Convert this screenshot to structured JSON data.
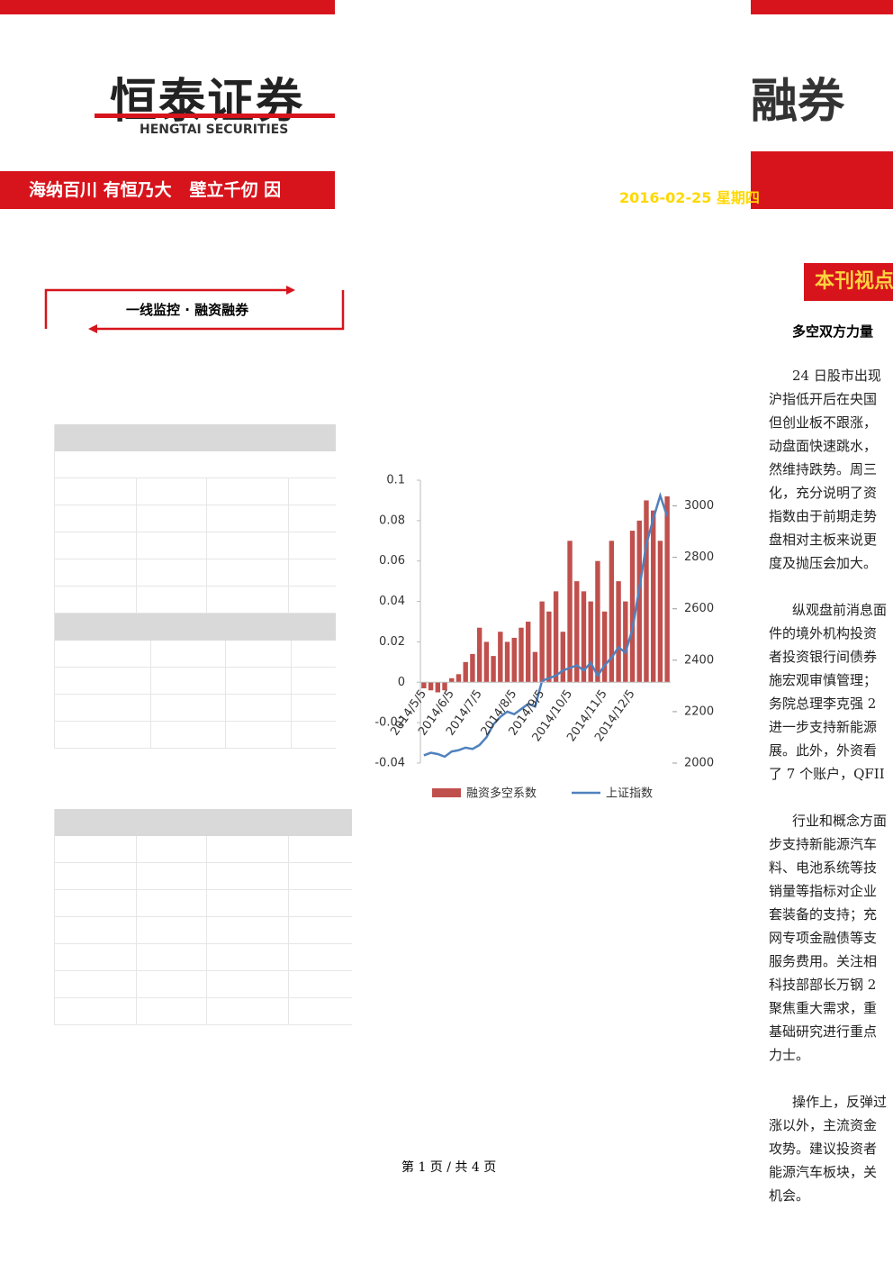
{
  "header": {
    "logo_cn": "恒泰证券",
    "logo_en": "HENGTAI SECURITIES",
    "slogan": "海纳百川 有恒乃大   壁立千仞 因",
    "date": "2016-02-25 星期四",
    "logo_right": "融券"
  },
  "section_title": "一线监控 · 融资融券",
  "sidebar": {
    "title": "本刊视点",
    "subtitle": "多空双方力量",
    "paragraphs": [
      [
        "24 日股市出现",
        "沪指低开后在央国",
        "但创业板不跟涨，",
        "动盘面快速跳水，",
        "然维持跌势。周三",
        "化，充分说明了资",
        "指数由于前期走势",
        "盘相对主板来说更",
        "度及抛压会加大。"
      ],
      [
        "纵观盘前消息面",
        "件的境外机构投资",
        "者投资银行间债券",
        "施宏观审慎管理；",
        "务院总理李克强 2",
        "进一步支持新能源",
        "展。此外，外资看",
        "了 7 个账户，QFII"
      ],
      [
        "行业和概念方面",
        "步支持新能源汽车",
        "料、电池系统等技",
        "销量等指标对企业",
        "套装备的支持；充",
        "网专项金融债等支",
        "服务费用。关注相",
        "科技部部长万钢 2",
        "聚焦重大需求，重",
        "基础研究进行重点",
        "力士。"
      ],
      [
        "操作上，反弹过",
        "涨以外，主流资金",
        "攻势。建议投资者",
        "能源汽车板块，关",
        "机会。"
      ]
    ]
  },
  "footer": "第 1 页 / 共 4 页",
  "chart_data": {
    "type": "bar-line",
    "categories": [
      "2014/5/5",
      null,
      null,
      null,
      "2014/6/5",
      null,
      null,
      null,
      "2014/7/5",
      null,
      null,
      null,
      null,
      "2014/8/5",
      null,
      null,
      null,
      "2014/9/5",
      null,
      null,
      null,
      "2014/10/5",
      null,
      null,
      null,
      null,
      "2014/11/5",
      null,
      null,
      null,
      "2014/12/5",
      null,
      null,
      null,
      null,
      null
    ],
    "series": [
      {
        "name": "融资多空系数",
        "color": "#c0504d",
        "kind": "bar",
        "values": [
          -0.003,
          -0.004,
          -0.005,
          -0.004,
          0.002,
          0.004,
          0.01,
          0.014,
          0.027,
          0.02,
          0.013,
          0.025,
          0.02,
          0.022,
          0.027,
          0.03,
          0.015,
          0.04,
          0.035,
          0.045,
          0.025,
          0.07,
          0.05,
          0.045,
          0.04,
          0.06,
          0.035,
          0.07,
          0.05,
          0.04,
          0.075,
          0.08,
          0.09,
          0.085,
          0.07,
          0.092
        ]
      },
      {
        "name": "上证指数",
        "color": "#4f81bd",
        "kind": "line",
        "axis": "y2",
        "values": [
          2030,
          2040,
          2035,
          2025,
          2045,
          2050,
          2060,
          2055,
          2070,
          2100,
          2150,
          2180,
          2200,
          2190,
          2210,
          2230,
          2220,
          2320,
          2330,
          2340,
          2360,
          2370,
          2380,
          2360,
          2390,
          2340,
          2380,
          2410,
          2450,
          2430,
          2520,
          2680,
          2850,
          2950,
          3040,
          2960
        ]
      }
    ],
    "ylim": [
      -0.04,
      0.1
    ],
    "yticks": [
      -0.04,
      -0.02,
      0,
      0.02,
      0.04,
      0.06,
      0.08,
      0.1
    ],
    "y2lim": [
      2000,
      3100
    ],
    "y2ticks": [
      2000,
      2200,
      2400,
      2600,
      2800,
      3000
    ]
  }
}
